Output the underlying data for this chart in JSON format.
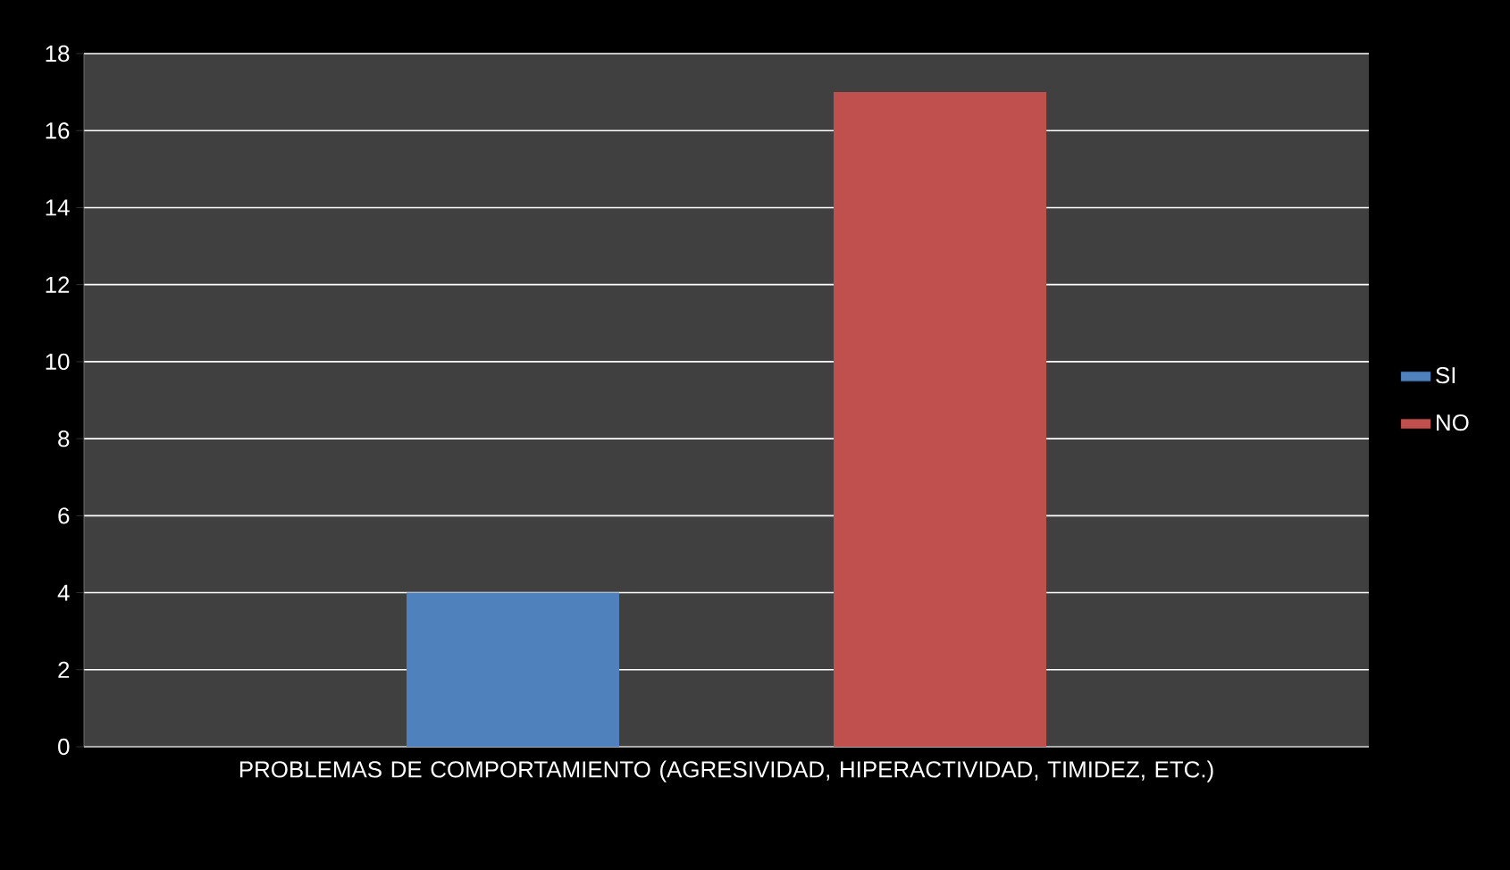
{
  "chart_data": {
    "type": "bar",
    "categories": [
      "PROBLEMAS DE COMPORTAMIENTO (AGRESIVIDAD, HIPERACTIVIDAD, TIMIDEZ, ETC.)"
    ],
    "series": [
      {
        "name": "SI",
        "color": "#4f81bd",
        "values": [
          4
        ]
      },
      {
        "name": "NO",
        "color": "#c0504d",
        "values": [
          17
        ]
      }
    ],
    "ylim": [
      0,
      18
    ],
    "yticks": [
      0,
      2,
      4,
      6,
      8,
      10,
      12,
      14,
      16,
      18
    ],
    "grid": "y",
    "legend": "right"
  }
}
